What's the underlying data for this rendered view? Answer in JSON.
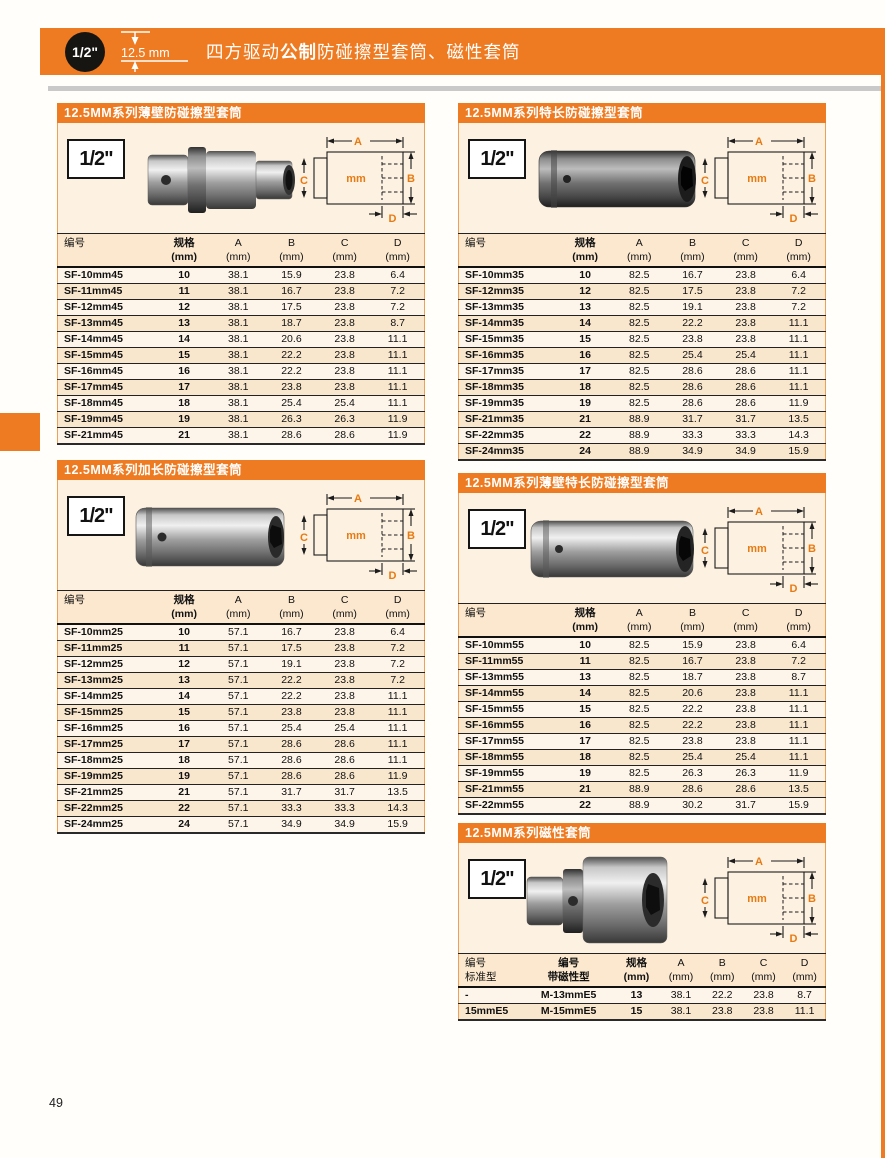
{
  "page": {
    "number": "49"
  },
  "banner": {
    "drive_size": "1/2\"",
    "dimension": "12.5 mm",
    "title_pre": "四方驱动",
    "title_bold": "公制",
    "title_post": "防碰擦型套筒、磁性套筒"
  },
  "diagram": {
    "a": "A",
    "b": "B",
    "c": "C",
    "d": "D",
    "unit": "mm"
  },
  "sections": [
    {
      "title": "12.5MM系列薄壁防碰擦型套筒",
      "badge": "1/2\"",
      "columns": [
        {
          "l1": "编号",
          "l2": ""
        },
        {
          "l1": "规格",
          "l2": "(mm)",
          "bold": true
        },
        {
          "l1": "A",
          "l2": "(mm)"
        },
        {
          "l1": "B",
          "l2": "(mm)"
        },
        {
          "l1": "C",
          "l2": "(mm)"
        },
        {
          "l1": "D",
          "l2": "(mm)"
        }
      ],
      "rows": [
        [
          "SF-10mm45",
          "10",
          "38.1",
          "15.9",
          "23.8",
          "6.4"
        ],
        [
          "SF-11mm45",
          "11",
          "38.1",
          "16.7",
          "23.8",
          "7.2"
        ],
        [
          "SF-12mm45",
          "12",
          "38.1",
          "17.5",
          "23.8",
          "7.2"
        ],
        [
          "SF-13mm45",
          "13",
          "38.1",
          "18.7",
          "23.8",
          "8.7"
        ],
        [
          "SF-14mm45",
          "14",
          "38.1",
          "20.6",
          "23.8",
          "11.1"
        ],
        [
          "SF-15mm45",
          "15",
          "38.1",
          "22.2",
          "23.8",
          "11.1"
        ],
        [
          "SF-16mm45",
          "16",
          "38.1",
          "22.2",
          "23.8",
          "11.1"
        ],
        [
          "SF-17mm45",
          "17",
          "38.1",
          "23.8",
          "23.8",
          "11.1"
        ],
        [
          "SF-18mm45",
          "18",
          "38.1",
          "25.4",
          "25.4",
          "11.1"
        ],
        [
          "SF-19mm45",
          "19",
          "38.1",
          "26.3",
          "26.3",
          "11.9"
        ],
        [
          "SF-21mm45",
          "21",
          "38.1",
          "28.6",
          "28.6",
          "11.9"
        ]
      ]
    },
    {
      "title": "12.5MM系列特长防碰擦型套筒",
      "badge": "1/2\"",
      "columns": [
        {
          "l1": "编号",
          "l2": ""
        },
        {
          "l1": "规格",
          "l2": "(mm)",
          "bold": true
        },
        {
          "l1": "A",
          "l2": "(mm)"
        },
        {
          "l1": "B",
          "l2": "(mm)"
        },
        {
          "l1": "C",
          "l2": "(mm)"
        },
        {
          "l1": "D",
          "l2": "(mm)"
        }
      ],
      "rows": [
        [
          "SF-10mm35",
          "10",
          "82.5",
          "16.7",
          "23.8",
          "6.4"
        ],
        [
          "SF-12mm35",
          "12",
          "82.5",
          "17.5",
          "23.8",
          "7.2"
        ],
        [
          "SF-13mm35",
          "13",
          "82.5",
          "19.1",
          "23.8",
          "7.2"
        ],
        [
          "SF-14mm35",
          "14",
          "82.5",
          "22.2",
          "23.8",
          "11.1"
        ],
        [
          "SF-15mm35",
          "15",
          "82.5",
          "23.8",
          "23.8",
          "11.1"
        ],
        [
          "SF-16mm35",
          "16",
          "82.5",
          "25.4",
          "25.4",
          "11.1"
        ],
        [
          "SF-17mm35",
          "17",
          "82.5",
          "28.6",
          "28.6",
          "11.1"
        ],
        [
          "SF-18mm35",
          "18",
          "82.5",
          "28.6",
          "28.6",
          "11.1"
        ],
        [
          "SF-19mm35",
          "19",
          "82.5",
          "28.6",
          "28.6",
          "11.9"
        ],
        [
          "SF-21mm35",
          "21",
          "88.9",
          "31.7",
          "31.7",
          "13.5"
        ],
        [
          "SF-22mm35",
          "22",
          "88.9",
          "33.3",
          "33.3",
          "14.3"
        ],
        [
          "SF-24mm35",
          "24",
          "88.9",
          "34.9",
          "34.9",
          "15.9"
        ]
      ]
    },
    {
      "title": "12.5MM系列加长防碰擦型套筒",
      "badge": "1/2\"",
      "columns": [
        {
          "l1": "编号",
          "l2": ""
        },
        {
          "l1": "规格",
          "l2": "(mm)",
          "bold": true
        },
        {
          "l1": "A",
          "l2": "(mm)"
        },
        {
          "l1": "B",
          "l2": "(mm)"
        },
        {
          "l1": "C",
          "l2": "(mm)"
        },
        {
          "l1": "D",
          "l2": "(mm)"
        }
      ],
      "rows": [
        [
          "SF-10mm25",
          "10",
          "57.1",
          "16.7",
          "23.8",
          "6.4"
        ],
        [
          "SF-11mm25",
          "11",
          "57.1",
          "17.5",
          "23.8",
          "7.2"
        ],
        [
          "SF-12mm25",
          "12",
          "57.1",
          "19.1",
          "23.8",
          "7.2"
        ],
        [
          "SF-13mm25",
          "13",
          "57.1",
          "22.2",
          "23.8",
          "7.2"
        ],
        [
          "SF-14mm25",
          "14",
          "57.1",
          "22.2",
          "23.8",
          "11.1"
        ],
        [
          "SF-15mm25",
          "15",
          "57.1",
          "23.8",
          "23.8",
          "11.1"
        ],
        [
          "SF-16mm25",
          "16",
          "57.1",
          "25.4",
          "25.4",
          "11.1"
        ],
        [
          "SF-17mm25",
          "17",
          "57.1",
          "28.6",
          "28.6",
          "11.1"
        ],
        [
          "SF-18mm25",
          "18",
          "57.1",
          "28.6",
          "28.6",
          "11.1"
        ],
        [
          "SF-19mm25",
          "19",
          "57.1",
          "28.6",
          "28.6",
          "11.9"
        ],
        [
          "SF-21mm25",
          "21",
          "57.1",
          "31.7",
          "31.7",
          "13.5"
        ],
        [
          "SF-22mm25",
          "22",
          "57.1",
          "33.3",
          "33.3",
          "14.3"
        ],
        [
          "SF-24mm25",
          "24",
          "57.1",
          "34.9",
          "34.9",
          "15.9"
        ]
      ]
    },
    {
      "title": "12.5MM系列薄壁特长防碰擦型套筒",
      "badge": "1/2\"",
      "columns": [
        {
          "l1": "编号",
          "l2": ""
        },
        {
          "l1": "规格",
          "l2": "(mm)",
          "bold": true
        },
        {
          "l1": "A",
          "l2": "(mm)"
        },
        {
          "l1": "B",
          "l2": "(mm)"
        },
        {
          "l1": "C",
          "l2": "(mm)"
        },
        {
          "l1": "D",
          "l2": "(mm)"
        }
      ],
      "rows": [
        [
          "SF-10mm55",
          "10",
          "82.5",
          "15.9",
          "23.8",
          "6.4"
        ],
        [
          "SF-11mm55",
          "11",
          "82.5",
          "16.7",
          "23.8",
          "7.2"
        ],
        [
          "SF-13mm55",
          "13",
          "82.5",
          "18.7",
          "23.8",
          "8.7"
        ],
        [
          "SF-14mm55",
          "14",
          "82.5",
          "20.6",
          "23.8",
          "11.1"
        ],
        [
          "SF-15mm55",
          "15",
          "82.5",
          "22.2",
          "23.8",
          "11.1"
        ],
        [
          "SF-16mm55",
          "16",
          "82.5",
          "22.2",
          "23.8",
          "11.1"
        ],
        [
          "SF-17mm55",
          "17",
          "82.5",
          "23.8",
          "23.8",
          "11.1"
        ],
        [
          "SF-18mm55",
          "18",
          "82.5",
          "25.4",
          "25.4",
          "11.1"
        ],
        [
          "SF-19mm55",
          "19",
          "82.5",
          "26.3",
          "26.3",
          "11.9"
        ],
        [
          "SF-21mm55",
          "21",
          "88.9",
          "28.6",
          "28.6",
          "13.5"
        ],
        [
          "SF-22mm55",
          "22",
          "88.9",
          "30.2",
          "31.7",
          "15.9"
        ]
      ]
    },
    {
      "title": "12.5MM系列磁性套筒",
      "badge": "1/2\"",
      "columns": [
        {
          "l1": "编号",
          "l2": "标准型"
        },
        {
          "l1": "编号",
          "l2": "带磁性型",
          "bold": true
        },
        {
          "l1": "规格",
          "l2": "(mm)",
          "bold": true
        },
        {
          "l1": "A",
          "l2": "(mm)"
        },
        {
          "l1": "B",
          "l2": "(mm)"
        },
        {
          "l1": "C",
          "l2": "(mm)"
        },
        {
          "l1": "D",
          "l2": "(mm)"
        }
      ],
      "rows": [
        [
          "-",
          "M-13mmE5",
          "13",
          "38.1",
          "22.2",
          "23.8",
          "8.7"
        ],
        [
          "15mmE5",
          "M-15mmE5",
          "15",
          "38.1",
          "23.8",
          "23.8",
          "11.1"
        ]
      ]
    }
  ]
}
